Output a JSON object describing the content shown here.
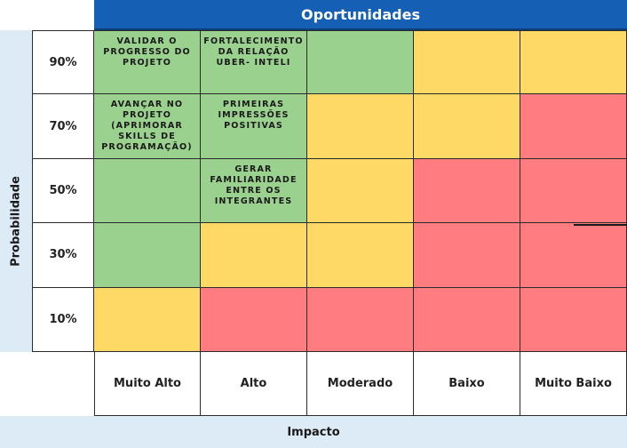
{
  "header": {
    "title": "Oportunidades"
  },
  "axes": {
    "probability_label": "Probabilidade",
    "impact_label": "Impacto"
  },
  "probability_levels": [
    "90%",
    "70%",
    "50%",
    "30%",
    "10%"
  ],
  "impact_levels": [
    "Muito Alto",
    "Alto",
    "Moderado",
    "Baixo",
    "Muito Baixo"
  ],
  "colors": {
    "green": "#9bd18e",
    "yellow": "#ffd966",
    "red": "#ff7c80",
    "header": "#1560b4",
    "band": "#ddebf7"
  },
  "matrix": [
    [
      {
        "color": "green",
        "text": "VALIDAR O\nPROGRESSO DO\nPROJETO"
      },
      {
        "color": "green",
        "text": "FORTALECIMENTO\nDA RELAÇÃO\nUBER- INTELI"
      },
      {
        "color": "green",
        "text": ""
      },
      {
        "color": "yellow",
        "text": ""
      },
      {
        "color": "yellow",
        "text": ""
      }
    ],
    [
      {
        "color": "green",
        "text": "AVANÇAR NO\nPROJETO\n(APRIMORAR\nSKILLS DE\nPROGRAMAÇÃO)"
      },
      {
        "color": "green",
        "text": "PRIMEIRAS\nIMPRESSÕES\nPOSITIVAS"
      },
      {
        "color": "yellow",
        "text": ""
      },
      {
        "color": "yellow",
        "text": ""
      },
      {
        "color": "red",
        "text": ""
      }
    ],
    [
      {
        "color": "green",
        "text": ""
      },
      {
        "color": "green",
        "text": "GERAR\nFAMILIARIDADE\nENTRE OS\nINTEGRANTES"
      },
      {
        "color": "yellow",
        "text": ""
      },
      {
        "color": "red",
        "text": ""
      },
      {
        "color": "red",
        "text": ""
      }
    ],
    [
      {
        "color": "green",
        "text": ""
      },
      {
        "color": "yellow",
        "text": ""
      },
      {
        "color": "yellow",
        "text": ""
      },
      {
        "color": "red",
        "text": ""
      },
      {
        "color": "red",
        "text": ""
      }
    ],
    [
      {
        "color": "yellow",
        "text": ""
      },
      {
        "color": "red",
        "text": ""
      },
      {
        "color": "red",
        "text": ""
      },
      {
        "color": "red",
        "text": ""
      },
      {
        "color": "red",
        "text": ""
      }
    ]
  ]
}
